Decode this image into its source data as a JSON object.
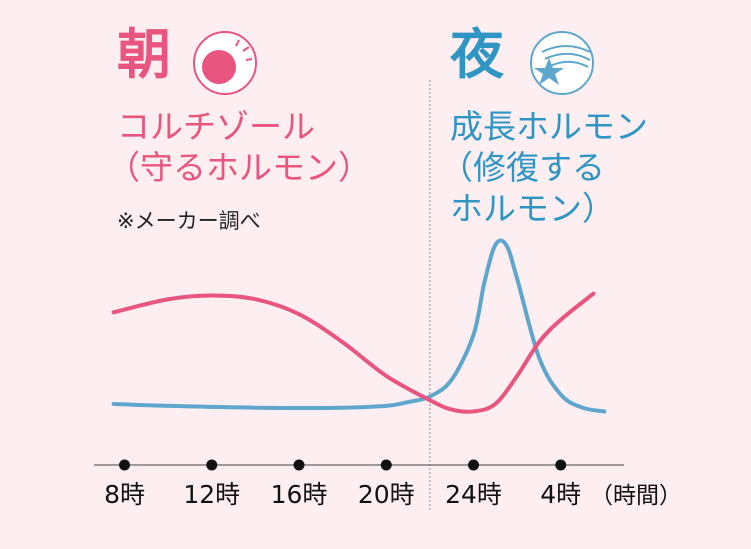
{
  "morning": {
    "kanji": "朝",
    "hormone": "コルチゾール",
    "description": "（守るホルモン）",
    "note": "※メーカー調べ"
  },
  "night": {
    "kanji": "夜",
    "hormone": "成長ホルモン",
    "description_line1": "（修復する",
    "description_line2": "ホルモン）"
  },
  "colors": {
    "cortisol": "#e8557f",
    "growth": "#5fa6cc",
    "background": "#fdeef2",
    "axis": "#666666"
  },
  "icons": {
    "morning": "sun-icon",
    "night": "moon-star-icon"
  },
  "chart_data": {
    "type": "line",
    "x_tick_labels": [
      "8時",
      "12時",
      "16時",
      "20時",
      "24時",
      "4時"
    ],
    "x_unit_label": "（時間）",
    "x": [
      8,
      12,
      16,
      20,
      24,
      28
    ],
    "xlim": [
      6.6,
      30.9
    ],
    "ylim": [
      0,
      1
    ],
    "grid": false,
    "divider_x": 22,
    "series": [
      {
        "key": "cortisol",
        "color": "#e8557f",
        "points": [
          [
            7.5,
            0.64
          ],
          [
            10,
            0.71
          ],
          [
            12,
            0.73
          ],
          [
            14,
            0.71
          ],
          [
            16,
            0.63
          ],
          [
            18,
            0.48
          ],
          [
            20,
            0.3
          ],
          [
            22,
            0.17
          ],
          [
            23,
            0.12
          ],
          [
            24,
            0.11
          ],
          [
            25,
            0.15
          ],
          [
            26,
            0.3
          ],
          [
            27,
            0.48
          ],
          [
            28,
            0.6
          ],
          [
            29.5,
            0.74
          ]
        ]
      },
      {
        "key": "growth",
        "color": "#5fa6cc",
        "points": [
          [
            7.5,
            0.15
          ],
          [
            10,
            0.14
          ],
          [
            14,
            0.13
          ],
          [
            18,
            0.13
          ],
          [
            20,
            0.14
          ],
          [
            21,
            0.16
          ],
          [
            22,
            0.19
          ],
          [
            23,
            0.28
          ],
          [
            24,
            0.52
          ],
          [
            24.5,
            0.8
          ],
          [
            25,
            1.0
          ],
          [
            25.5,
            1.0
          ],
          [
            26,
            0.82
          ],
          [
            27,
            0.4
          ],
          [
            28,
            0.2
          ],
          [
            29,
            0.13
          ],
          [
            30,
            0.11
          ]
        ]
      }
    ]
  }
}
